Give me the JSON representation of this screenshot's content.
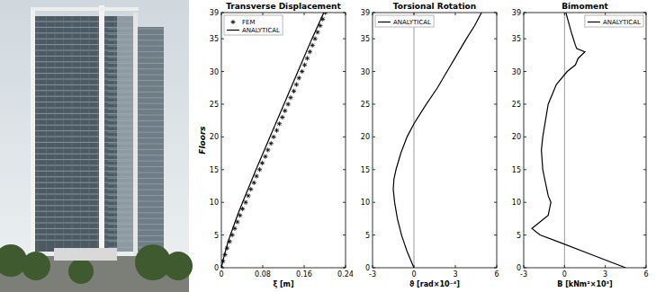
{
  "chart_data": [
    {
      "type": "line",
      "title": "Transverse Displacement",
      "xlabel": "ξ [m]",
      "ylabel": "Floors",
      "xlim": [
        0,
        0.24
      ],
      "xticks": [
        0,
        0.08,
        0.16,
        0.24
      ],
      "ylim": [
        0,
        39
      ],
      "yticks": [
        0,
        5,
        10,
        15,
        20,
        25,
        30,
        35,
        39
      ],
      "legend": "upper left",
      "series": [
        {
          "name": "FEM",
          "type": "scatter",
          "marker": "star",
          "color": "#000000",
          "x": [
            0,
            0.003,
            0.007,
            0.011,
            0.016,
            0.021,
            0.026,
            0.031,
            0.036,
            0.041,
            0.047,
            0.052,
            0.057,
            0.063,
            0.068,
            0.074,
            0.079,
            0.085,
            0.09,
            0.096,
            0.101,
            0.107,
            0.112,
            0.118,
            0.123,
            0.129,
            0.134,
            0.14,
            0.145,
            0.15,
            0.156,
            0.161,
            0.166,
            0.171,
            0.176,
            0.181,
            0.186,
            0.191,
            0.196,
            0.201
          ],
          "y": [
            0,
            1,
            2,
            3,
            4,
            5,
            6,
            7,
            8,
            9,
            10,
            11,
            12,
            13,
            14,
            15,
            16,
            17,
            18,
            19,
            20,
            21,
            22,
            23,
            24,
            25,
            26,
            27,
            28,
            29,
            30,
            31,
            32,
            33,
            34,
            35,
            36,
            37,
            38,
            39
          ]
        },
        {
          "name": "ANALYTICAL",
          "type": "line",
          "line_style": "solid",
          "color": "#000000",
          "x": [
            0,
            0.006,
            0.013,
            0.022,
            0.031,
            0.041,
            0.067,
            0.094,
            0.121,
            0.148,
            0.175,
            0.198
          ],
          "y": [
            0,
            2,
            4,
            6,
            8,
            10,
            15,
            20,
            25,
            30,
            35,
            39
          ]
        }
      ]
    },
    {
      "type": "line",
      "title": "Torsional Rotation",
      "xlabel": "ϑ [rad×10⁻⁴]",
      "xlim": [
        -3,
        6
      ],
      "xticks": [
        -3,
        0,
        3,
        6
      ],
      "ylim": [
        0,
        39
      ],
      "yticks": [
        0,
        5,
        10,
        15,
        20,
        25,
        30,
        35,
        39
      ],
      "legend": "upper left",
      "series": [
        {
          "name": "ANALYTICAL",
          "type": "line",
          "line_style": "solid",
          "color": "#000000",
          "x": [
            0,
            -0.5,
            -0.9,
            -1.2,
            -1.4,
            -1.5,
            -1.45,
            -1.3,
            -0.95,
            -0.5,
            0,
            0.9,
            1.7,
            2.4,
            3.1,
            3.8,
            4.4,
            4.9
          ],
          "y": [
            0,
            2.5,
            5,
            7.5,
            10,
            12,
            13.5,
            15,
            17.5,
            20,
            22,
            25,
            27.5,
            30,
            32.5,
            35,
            37,
            39
          ]
        }
      ]
    },
    {
      "type": "line",
      "title": "Bimoment",
      "xlabel": "B [kNm²×10³]",
      "xlim": [
        -3,
        6
      ],
      "xticks": [
        -3,
        0,
        3,
        6
      ],
      "ylim": [
        0,
        39
      ],
      "yticks": [
        0,
        5,
        10,
        15,
        20,
        25,
        30,
        35,
        39
      ],
      "legend": "upper right",
      "series": [
        {
          "name": "ANALYTICAL",
          "type": "line",
          "line_style": "solid",
          "color": "#000000",
          "x": [
            4.5,
            2.0,
            -0.5,
            -1.8,
            -2.4,
            -1.8,
            -1.2,
            -1.0,
            -1.2,
            -1.4,
            -1.6,
            -1.7,
            -1.6,
            -1.2,
            -0.6,
            0.2,
            0.8,
            1.0,
            1.5,
            0.9,
            0.8,
            0.5,
            0.1
          ],
          "y": [
            0,
            2,
            4,
            5,
            6,
            7,
            8,
            10,
            11,
            13,
            15,
            18,
            20,
            25,
            28,
            30,
            31,
            32,
            33,
            33.5,
            34,
            36,
            39
          ]
        }
      ]
    }
  ]
}
